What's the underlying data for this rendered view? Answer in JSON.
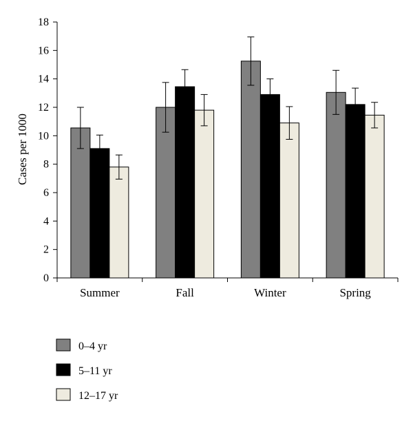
{
  "chart_data": {
    "type": "bar",
    "title": "",
    "xlabel": "",
    "ylabel": "Cases per 1000",
    "ylim": [
      0,
      18
    ],
    "yticks": [
      0,
      2,
      4,
      6,
      8,
      10,
      12,
      14,
      16,
      18
    ],
    "categories": [
      "Summer",
      "Fall",
      "Winter",
      "Spring"
    ],
    "series": [
      {
        "name": "0–4 yr",
        "color": "#808080",
        "values": [
          10.55,
          12.0,
          15.25,
          13.05
        ],
        "error": [
          1.45,
          1.75,
          1.7,
          1.55
        ]
      },
      {
        "name": "5–11 yr",
        "color": "#000000",
        "values": [
          9.1,
          13.45,
          12.9,
          12.2
        ],
        "error": [
          0.95,
          1.2,
          1.1,
          1.15
        ]
      },
      {
        "name": "12–17 yr",
        "color": "#eeebdf",
        "values": [
          7.8,
          11.8,
          10.9,
          11.45
        ],
        "error": [
          0.85,
          1.1,
          1.15,
          0.9
        ]
      }
    ],
    "grid": false,
    "legend": "bottom-left"
  }
}
